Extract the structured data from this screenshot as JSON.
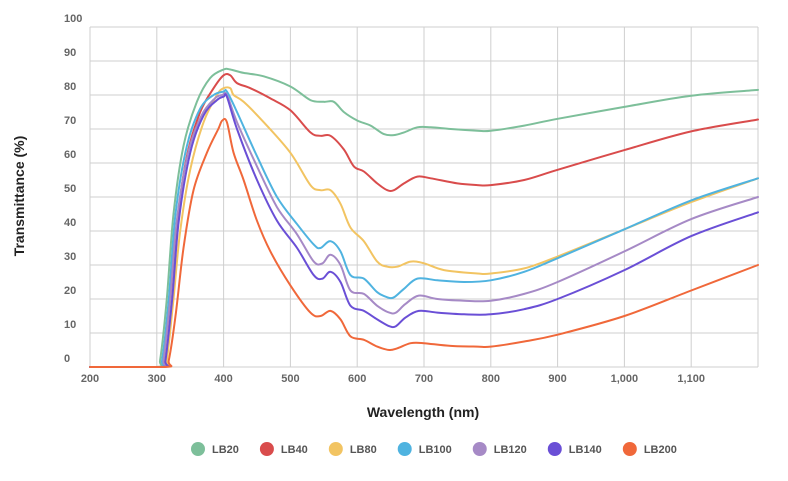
{
  "chart_data": {
    "type": "line",
    "xlabel": "Wavelength (nm)",
    "ylabel": "Transmittance (%)",
    "xlim": [
      200,
      1200
    ],
    "ylim": [
      0,
      100
    ],
    "x_ticks": [
      200,
      300,
      400,
      500,
      600,
      700,
      800,
      900,
      1000,
      1100
    ],
    "x_tick_labels": [
      "200",
      "300",
      "400",
      "500",
      "600",
      "700",
      "800",
      "900",
      "1,000",
      "1,100"
    ],
    "y_ticks": [
      0,
      10,
      20,
      30,
      40,
      50,
      60,
      70,
      80,
      90,
      100
    ],
    "y_tick_labels": [
      "0",
      "10",
      "20",
      "30",
      "40",
      "50",
      "60",
      "70",
      "80",
      "90",
      "100"
    ],
    "grid": true,
    "legend_position": "bottom",
    "series": [
      {
        "name": "LB20",
        "color": "#7dbf9a",
        "points": [
          [
            200,
            0
          ],
          [
            300,
            0
          ],
          [
            305,
            2
          ],
          [
            315,
            20
          ],
          [
            325,
            45
          ],
          [
            340,
            65
          ],
          [
            360,
            78
          ],
          [
            380,
            85
          ],
          [
            400,
            87.5
          ],
          [
            410,
            87.5
          ],
          [
            430,
            86.5
          ],
          [
            460,
            85.5
          ],
          [
            500,
            82.5
          ],
          [
            530,
            78.5
          ],
          [
            550,
            78
          ],
          [
            565,
            78
          ],
          [
            580,
            75
          ],
          [
            600,
            72.5
          ],
          [
            620,
            71
          ],
          [
            640,
            68.5
          ],
          [
            655,
            68.2
          ],
          [
            670,
            69
          ],
          [
            690,
            70.5
          ],
          [
            710,
            70.5
          ],
          [
            740,
            70
          ],
          [
            780,
            69.5
          ],
          [
            800,
            69.5
          ],
          [
            850,
            71
          ],
          [
            900,
            73
          ],
          [
            1000,
            76.5
          ],
          [
            1100,
            79.8
          ],
          [
            1200,
            81.5
          ]
        ]
      },
      {
        "name": "LB40",
        "color": "#d94c4c",
        "points": [
          [
            200,
            0
          ],
          [
            305,
            0
          ],
          [
            310,
            2
          ],
          [
            320,
            20
          ],
          [
            330,
            42
          ],
          [
            345,
            62
          ],
          [
            365,
            75
          ],
          [
            385,
            82
          ],
          [
            400,
            85.8
          ],
          [
            410,
            85.8
          ],
          [
            420,
            83.5
          ],
          [
            440,
            82
          ],
          [
            470,
            79
          ],
          [
            500,
            75.5
          ],
          [
            530,
            69
          ],
          [
            545,
            68
          ],
          [
            560,
            68
          ],
          [
            580,
            64
          ],
          [
            595,
            59
          ],
          [
            610,
            57.5
          ],
          [
            630,
            54
          ],
          [
            645,
            52
          ],
          [
            655,
            52
          ],
          [
            670,
            54
          ],
          [
            690,
            56
          ],
          [
            710,
            55.5
          ],
          [
            750,
            54
          ],
          [
            780,
            53.5
          ],
          [
            800,
            53.5
          ],
          [
            850,
            55
          ],
          [
            900,
            58
          ],
          [
            1000,
            63.8
          ],
          [
            1100,
            69.3
          ],
          [
            1200,
            72.8
          ]
        ]
      },
      {
        "name": "LB80",
        "color": "#f2c462",
        "points": [
          [
            200,
            0
          ],
          [
            310,
            0
          ],
          [
            315,
            2
          ],
          [
            325,
            20
          ],
          [
            335,
            40
          ],
          [
            350,
            58
          ],
          [
            370,
            72
          ],
          [
            390,
            80
          ],
          [
            400,
            82
          ],
          [
            410,
            82
          ],
          [
            415,
            80
          ],
          [
            430,
            78
          ],
          [
            460,
            72
          ],
          [
            500,
            63
          ],
          [
            530,
            53.5
          ],
          [
            545,
            52
          ],
          [
            560,
            52
          ],
          [
            575,
            48
          ],
          [
            590,
            41
          ],
          [
            610,
            37
          ],
          [
            630,
            31
          ],
          [
            645,
            29.5
          ],
          [
            660,
            29.5
          ],
          [
            680,
            31
          ],
          [
            700,
            30.5
          ],
          [
            730,
            28.5
          ],
          [
            780,
            27.5
          ],
          [
            800,
            27.5
          ],
          [
            850,
            29
          ],
          [
            900,
            32.5
          ],
          [
            1000,
            40.5
          ],
          [
            1100,
            48.5
          ],
          [
            1200,
            55.5
          ]
        ]
      },
      {
        "name": "LB100",
        "color": "#4fb3e0",
        "points": [
          [
            200,
            0
          ],
          [
            303,
            0
          ],
          [
            308,
            2
          ],
          [
            318,
            20
          ],
          [
            328,
            45
          ],
          [
            345,
            65
          ],
          [
            365,
            76
          ],
          [
            385,
            80
          ],
          [
            400,
            81
          ],
          [
            405,
            81
          ],
          [
            420,
            75
          ],
          [
            450,
            62
          ],
          [
            480,
            50
          ],
          [
            510,
            42
          ],
          [
            535,
            36
          ],
          [
            545,
            35
          ],
          [
            560,
            37
          ],
          [
            575,
            34
          ],
          [
            590,
            27
          ],
          [
            610,
            26
          ],
          [
            630,
            22
          ],
          [
            645,
            20.5
          ],
          [
            655,
            20.5
          ],
          [
            670,
            23
          ],
          [
            690,
            26
          ],
          [
            720,
            25.5
          ],
          [
            760,
            25
          ],
          [
            800,
            25.5
          ],
          [
            850,
            28
          ],
          [
            900,
            32
          ],
          [
            1000,
            40.5
          ],
          [
            1100,
            49
          ],
          [
            1200,
            55.5
          ]
        ]
      },
      {
        "name": "LB120",
        "color": "#a68ac6",
        "points": [
          [
            200,
            0
          ],
          [
            305,
            0
          ],
          [
            310,
            2
          ],
          [
            320,
            20
          ],
          [
            330,
            43
          ],
          [
            347,
            63
          ],
          [
            367,
            74
          ],
          [
            387,
            79
          ],
          [
            398,
            80
          ],
          [
            405,
            80
          ],
          [
            420,
            72
          ],
          [
            450,
            59
          ],
          [
            480,
            47
          ],
          [
            510,
            39
          ],
          [
            535,
            31
          ],
          [
            548,
            30.5
          ],
          [
            560,
            33
          ],
          [
            575,
            30
          ],
          [
            590,
            22.5
          ],
          [
            610,
            21.5
          ],
          [
            630,
            18
          ],
          [
            648,
            16
          ],
          [
            658,
            16
          ],
          [
            672,
            18.5
          ],
          [
            692,
            21
          ],
          [
            720,
            20
          ],
          [
            760,
            19.5
          ],
          [
            800,
            19.5
          ],
          [
            850,
            21.5
          ],
          [
            900,
            25
          ],
          [
            1000,
            34
          ],
          [
            1100,
            43.5
          ],
          [
            1200,
            50
          ]
        ]
      },
      {
        "name": "LB140",
        "color": "#6a4fd6",
        "points": [
          [
            200,
            0
          ],
          [
            308,
            0
          ],
          [
            313,
            2
          ],
          [
            323,
            20
          ],
          [
            333,
            43
          ],
          [
            350,
            63
          ],
          [
            370,
            74
          ],
          [
            390,
            78.5
          ],
          [
            400,
            79.5
          ],
          [
            405,
            79.5
          ],
          [
            420,
            70
          ],
          [
            450,
            55
          ],
          [
            480,
            43
          ],
          [
            510,
            35
          ],
          [
            535,
            27
          ],
          [
            548,
            26
          ],
          [
            560,
            28
          ],
          [
            575,
            25
          ],
          [
            590,
            18
          ],
          [
            610,
            16.5
          ],
          [
            630,
            14
          ],
          [
            648,
            12
          ],
          [
            658,
            12
          ],
          [
            672,
            14.5
          ],
          [
            692,
            16.5
          ],
          [
            720,
            16
          ],
          [
            760,
            15.5
          ],
          [
            800,
            15.5
          ],
          [
            850,
            17
          ],
          [
            900,
            20
          ],
          [
            1000,
            28.5
          ],
          [
            1100,
            38.5
          ],
          [
            1200,
            45.5
          ]
        ]
      },
      {
        "name": "LB200",
        "color": "#f0683a",
        "points": [
          [
            200,
            0
          ],
          [
            312,
            0
          ],
          [
            318,
            2
          ],
          [
            328,
            15
          ],
          [
            340,
            35
          ],
          [
            355,
            52
          ],
          [
            375,
            63
          ],
          [
            392,
            70
          ],
          [
            398,
            72.5
          ],
          [
            405,
            72
          ],
          [
            415,
            63
          ],
          [
            430,
            55
          ],
          [
            450,
            43
          ],
          [
            470,
            34
          ],
          [
            500,
            24
          ],
          [
            530,
            16
          ],
          [
            545,
            15
          ],
          [
            560,
            16.5
          ],
          [
            575,
            14
          ],
          [
            590,
            9
          ],
          [
            610,
            8
          ],
          [
            630,
            6
          ],
          [
            648,
            5
          ],
          [
            660,
            5.5
          ],
          [
            680,
            7
          ],
          [
            700,
            7
          ],
          [
            740,
            6.2
          ],
          [
            780,
            6
          ],
          [
            800,
            6
          ],
          [
            850,
            7.5
          ],
          [
            900,
            9.5
          ],
          [
            1000,
            15
          ],
          [
            1100,
            22.5
          ],
          [
            1200,
            30
          ]
        ]
      }
    ]
  }
}
